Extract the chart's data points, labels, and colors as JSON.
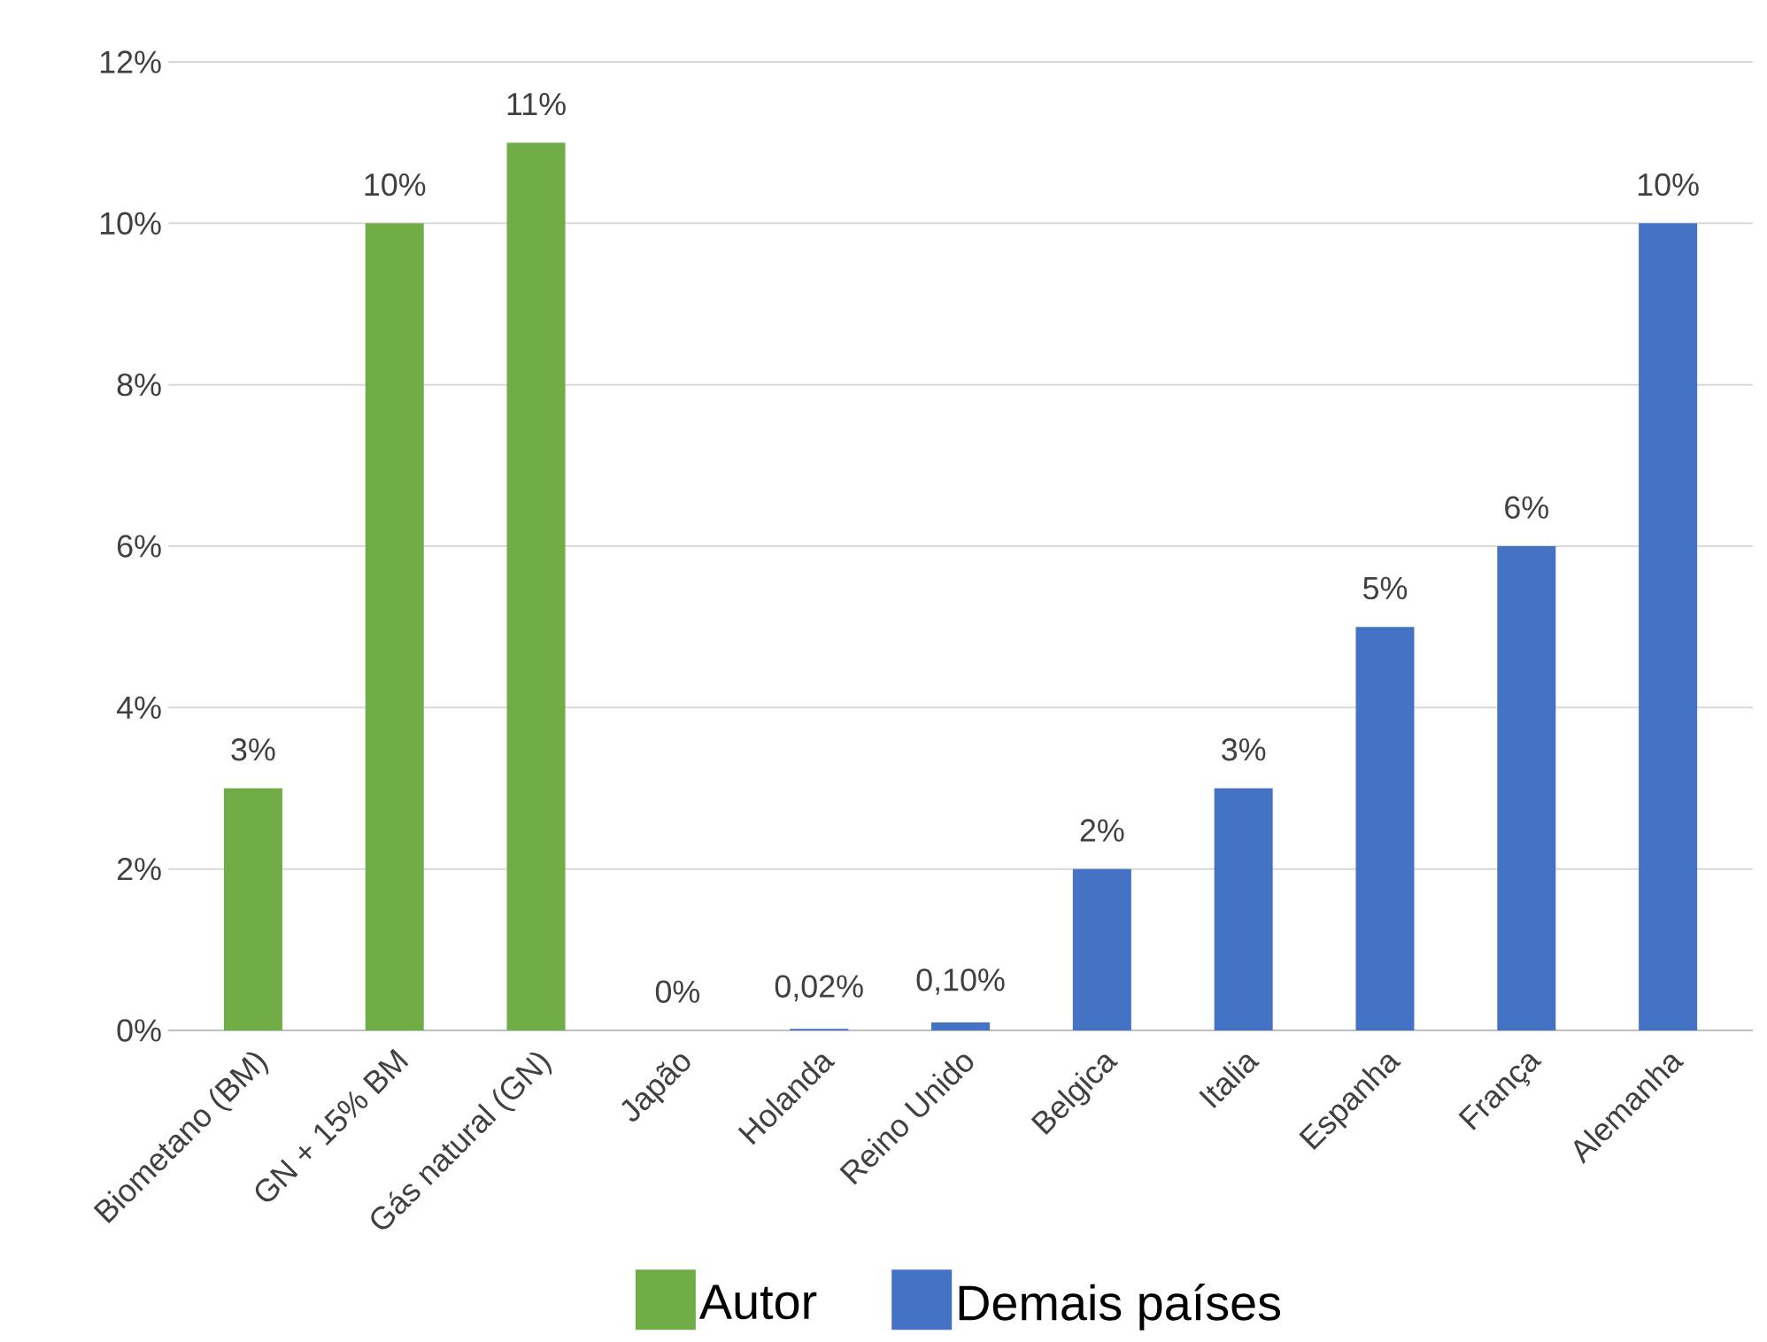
{
  "chart_data": {
    "type": "bar",
    "categories": [
      "Biometano (BM)",
      "GN + 15% BM",
      "Gás natural (GN)",
      "Japão",
      "Holanda",
      "Reino Unido",
      "Belgica",
      "Italia",
      "Espanha",
      "França",
      "Alemanha"
    ],
    "series": [
      {
        "name": "Autor",
        "color": "#70ad47",
        "values": [
          3,
          10,
          11,
          null,
          null,
          null,
          null,
          null,
          null,
          null,
          null
        ],
        "value_labels": [
          "3%",
          "10%",
          "11%",
          null,
          null,
          null,
          null,
          null,
          null,
          null,
          null
        ]
      },
      {
        "name": "Demais países",
        "color": "#4472c4",
        "values": [
          null,
          null,
          null,
          0,
          0.02,
          0.1,
          2,
          3,
          5,
          6,
          10
        ],
        "value_labels": [
          null,
          null,
          null,
          "0%",
          "0,02%",
          "0,10%",
          "2%",
          "3%",
          "5%",
          "6%",
          "10%"
        ]
      }
    ],
    "ylim": [
      0,
      12
    ],
    "yticks": [
      {
        "value": 0,
        "label": "0%"
      },
      {
        "value": 2,
        "label": "2%"
      },
      {
        "value": 4,
        "label": "4%"
      },
      {
        "value": 6,
        "label": "6%"
      },
      {
        "value": 8,
        "label": "8%"
      },
      {
        "value": 10,
        "label": "10%"
      },
      {
        "value": 12,
        "label": "12%"
      }
    ],
    "grid": "y",
    "legend": "bottom"
  }
}
